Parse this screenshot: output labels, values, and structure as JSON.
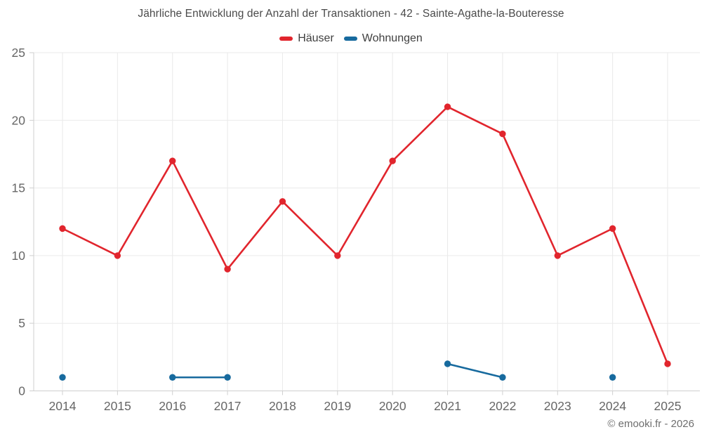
{
  "header": {
    "title": "Jährliche Entwicklung der Anzahl der Transaktionen - 42 - Sainte-Agathe-la-Bouteresse"
  },
  "legend": {
    "items": [
      {
        "label": "Häuser",
        "color": "#e1252d"
      },
      {
        "label": "Wohnungen",
        "color": "#176a9e"
      }
    ]
  },
  "footer": {
    "copyright": "© emooki.fr - 2026"
  },
  "colors": {
    "haeuser": "#e1252d",
    "wohnungen": "#176a9e",
    "gridline": "#eaeaea",
    "axis": "#cfcfcf",
    "tick_label": "#666666"
  },
  "chart_data": {
    "type": "line",
    "title": "Jährliche Entwicklung der Anzahl der Transaktionen - 42 - Sainte-Agathe-la-Bouteresse",
    "x": [
      2014,
      2015,
      2016,
      2017,
      2018,
      2019,
      2020,
      2021,
      2022,
      2023,
      2024,
      2025
    ],
    "series": [
      {
        "name": "Häuser",
        "color": "#e1252d",
        "values": [
          12,
          10,
          17,
          9,
          14,
          10,
          17,
          21,
          19,
          10,
          12,
          2
        ]
      },
      {
        "name": "Wohnungen",
        "color": "#176a9e",
        "values": [
          1,
          null,
          1,
          1,
          null,
          null,
          null,
          2,
          1,
          null,
          1,
          null
        ]
      }
    ],
    "xlabel": "",
    "ylabel": "",
    "ylim": [
      0,
      25
    ],
    "yticks": [
      0,
      5,
      10,
      15,
      20,
      25
    ],
    "grid": true,
    "legend_position": "top"
  }
}
